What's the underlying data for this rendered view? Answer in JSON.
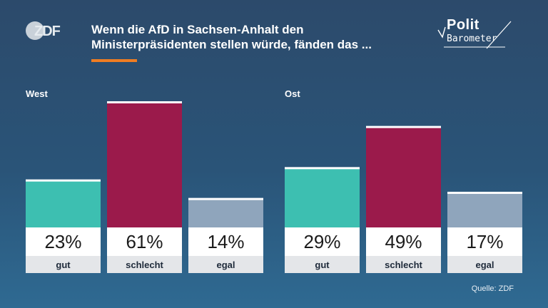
{
  "header": {
    "logo_text": "ZDF",
    "title_line1": "Wenn die AfD in Sachsen-Anhalt den",
    "title_line2": "Ministerpräsidenten stellen würde, fänden das ...",
    "brand_top": "Polit",
    "brand_bottom": "Barometer"
  },
  "colors": {
    "gut": "#3dbfb1",
    "schlecht": "#9b1a4b",
    "egal": "#8fa5bc",
    "accent": "#f07d22"
  },
  "chart_data": [
    {
      "type": "bar",
      "title": "West",
      "categories": [
        "gut",
        "schlecht",
        "egal"
      ],
      "values": [
        23,
        61,
        14
      ],
      "value_labels": [
        "23%",
        "61%",
        "14%"
      ],
      "ylim": [
        0,
        61
      ]
    },
    {
      "type": "bar",
      "title": "Ost",
      "categories": [
        "gut",
        "schlecht",
        "egal"
      ],
      "values": [
        29,
        49,
        17
      ],
      "value_labels": [
        "29%",
        "49%",
        "17%"
      ],
      "ylim": [
        0,
        61
      ]
    }
  ],
  "footer": {
    "source": "Quelle: ZDF"
  }
}
